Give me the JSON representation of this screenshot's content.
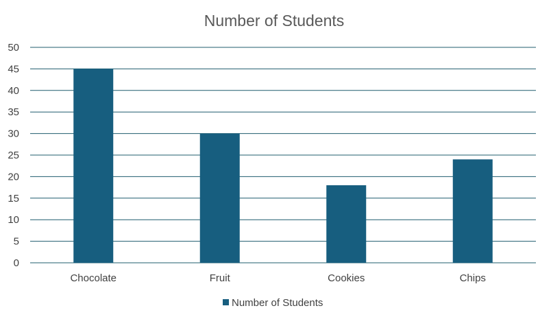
{
  "chart_data": {
    "type": "bar",
    "title": "Number of Students",
    "categories": [
      "Chocolate",
      "Fruit",
      "Cookies",
      "Chips"
    ],
    "series": [
      {
        "name": "Number of Students",
        "values": [
          45,
          30,
          18,
          24
        ],
        "color": "#175e7f"
      }
    ],
    "xlabel": "",
    "ylabel": "",
    "ylim": [
      0,
      50
    ],
    "yticks": [
      0,
      5,
      10,
      15,
      20,
      25,
      30,
      35,
      40,
      45,
      50
    ],
    "grid": true,
    "legend": "bottom"
  }
}
